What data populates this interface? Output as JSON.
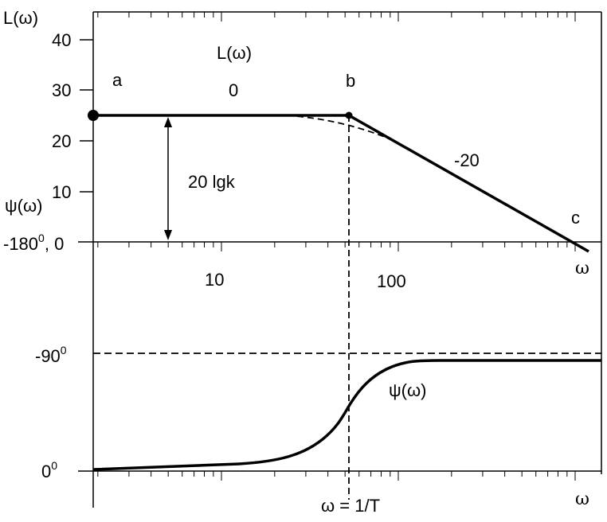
{
  "upper_plot": {
    "y_axis_title": "L(ω)",
    "y_ticks": [
      {
        "value": 40,
        "label": "40"
      },
      {
        "value": 30,
        "label": "30"
      },
      {
        "value": 20,
        "label": "20"
      },
      {
        "value": 10,
        "label": "10"
      }
    ],
    "zero_label": "-180",
    "zero_label_sup": "0",
    "zero_label_tail": ", 0",
    "curve_label": "L(ω)",
    "point_a": "a",
    "point_b": "b",
    "point_c": "c",
    "slope_flat": "0",
    "slope_down": "-20",
    "gain_label": "20 lgk",
    "x_label": "ω",
    "psi_axis_label": "ψ(ω)"
  },
  "lower_plot": {
    "x_ticks": [
      {
        "value": 10,
        "label": "10"
      },
      {
        "value": 100,
        "label": "100"
      }
    ],
    "minus90_label": "-90",
    "minus90_sup": "0",
    "zero_label": "0",
    "zero_sup": "0",
    "curve_label": "ψ(ω)",
    "x_label": "ω",
    "corner_label": "ω = 1/T"
  },
  "colors": {
    "line": "#000000",
    "background": "#ffffff"
  }
}
